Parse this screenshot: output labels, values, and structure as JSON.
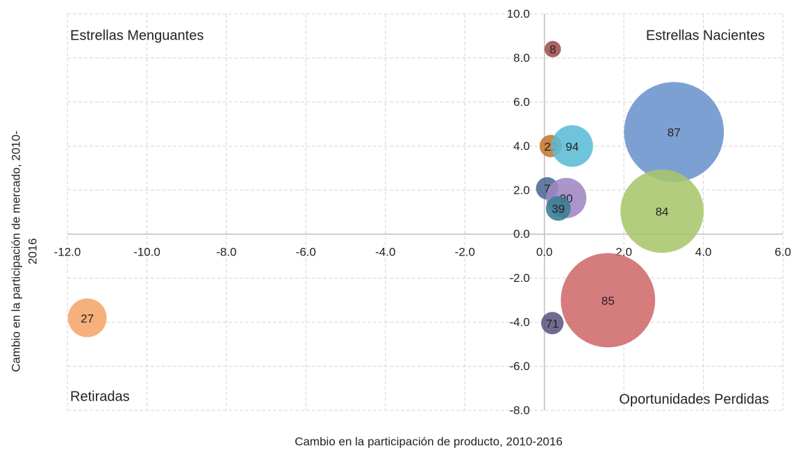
{
  "chart_data": {
    "type": "bubble",
    "x_label": "Cambio en la participación de producto, 2010-2016",
    "y_label": [
      "Cambio en la participación de mercado, 2010-",
      "2016"
    ],
    "annotations": [
      "Estrellas Menguantes",
      "Estrellas Nacientes",
      "Retiradas",
      "Oportunidades Perdidas"
    ],
    "labels": [
      "8",
      "22",
      "94",
      "87",
      "7",
      "90",
      "39",
      "84",
      "85",
      "71",
      "27"
    ],
    "x": [
      0.21,
      0.16,
      0.7,
      3.26,
      0.07,
      0.55,
      0.35,
      2.96,
      1.6,
      0.2,
      -11.5
    ],
    "values": [
      8.4,
      4.0,
      4.0,
      4.64,
      2.08,
      1.64,
      1.17,
      1.04,
      -3.0,
      -4.04,
      -3.8
    ],
    "sizes": [
      14,
      26,
      90,
      518,
      26,
      84,
      32,
      360,
      462,
      26,
      78
    ],
    "colors": [
      "#9e4f4f",
      "#c5772e",
      "#5bbcd6",
      "#6b93cc",
      "#4e6a92",
      "#9f86c4",
      "#3a7d92",
      "#a8c66c",
      "#cf6a6a",
      "#5e5680",
      "#f5a56a"
    ],
    "xlim": [
      -12,
      6
    ],
    "ylim": [
      -8,
      10
    ],
    "xticks": [
      {
        "value": -12,
        "label": "-12.0"
      },
      {
        "value": -10,
        "label": "-10.0"
      },
      {
        "value": -8,
        "label": "-8.0"
      },
      {
        "value": -6,
        "label": "-6.0"
      },
      {
        "value": -4,
        "label": "-4.0"
      },
      {
        "value": -2,
        "label": "-2.0"
      },
      {
        "value": 0,
        "label": "0.0"
      },
      {
        "value": 2,
        "label": "2.0"
      },
      {
        "value": 4,
        "label": "4.0"
      },
      {
        "value": 6,
        "label": "6.0"
      }
    ],
    "yticks": [
      {
        "value": -8,
        "label": "-8.0"
      },
      {
        "value": -6,
        "label": "-6.0"
      },
      {
        "value": -4,
        "label": "-4.0"
      },
      {
        "value": -2,
        "label": "-2.0"
      },
      {
        "value": 0,
        "label": "0.0"
      },
      {
        "value": 2,
        "label": "2.0"
      },
      {
        "value": 4,
        "label": "4.0"
      },
      {
        "value": 6,
        "label": "6.0"
      },
      {
        "value": 8,
        "label": "8.0"
      },
      {
        "value": 10,
        "label": "10.0"
      }
    ],
    "grid": true
  }
}
